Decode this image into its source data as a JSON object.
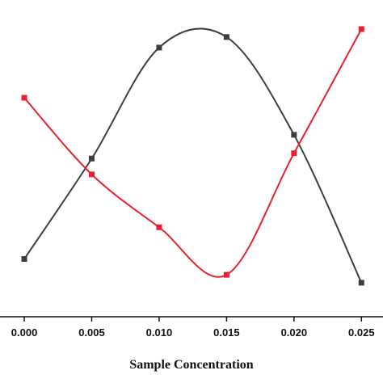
{
  "chart_data": {
    "type": "line",
    "title": "",
    "xlabel": "Sample Concentration",
    "ylabel": "",
    "xlim": [
      -0.0018,
      0.0266
    ],
    "ylim": [
      0,
      1
    ],
    "x_ticks": [
      "0.000",
      "0.005",
      "0.010",
      "0.015",
      "0.020",
      "0.025"
    ],
    "x": [
      0.0,
      0.005,
      0.01,
      0.015,
      0.02,
      0.025
    ],
    "smooth": true,
    "grid": false,
    "legend": "none",
    "series": [
      {
        "color": "#3d3d3d",
        "marker": "square",
        "values": [
          0.13,
          0.51,
          0.93,
          0.97,
          0.6,
          0.04
        ]
      },
      {
        "color": "#e8202f",
        "marker": "square",
        "values": [
          0.74,
          0.45,
          0.25,
          0.07,
          0.53,
          1.0
        ]
      }
    ]
  }
}
